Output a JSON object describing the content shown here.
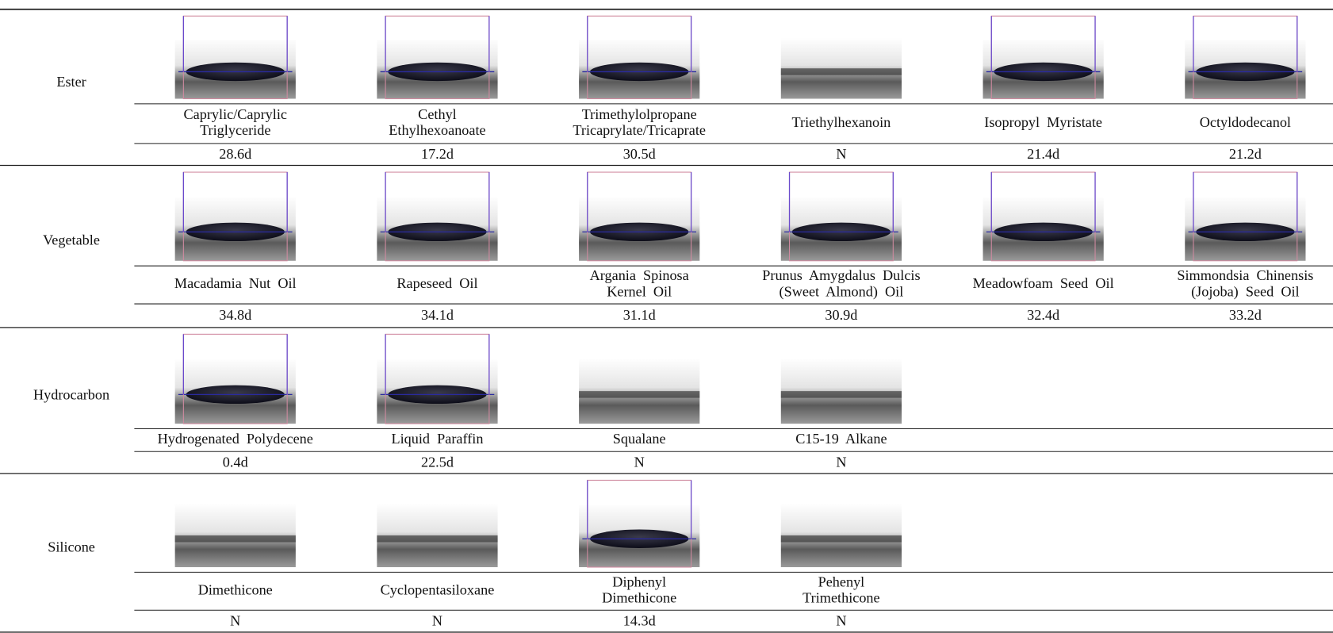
{
  "groups": [
    {
      "label": "Ester",
      "items": [
        {
          "name": [
            "Caprylic/Caprylic",
            "Triglyceride"
          ],
          "value": "28.6d"
        },
        {
          "name": [
            "Cethyl",
            "Ethylhexoanoate"
          ],
          "value": "17.2d"
        },
        {
          "name": [
            "Trimethylolpropane",
            "Tricaprylate/Tricaprate"
          ],
          "value": "30.5d"
        },
        {
          "name": [
            "Triethylhexanoin"
          ],
          "value": "N"
        },
        {
          "name": [
            "Isopropyl  Myristate"
          ],
          "value": "21.4d"
        },
        {
          "name": [
            "Octyldodecanol"
          ],
          "value": "21.2d"
        }
      ]
    },
    {
      "label": "Vegetable",
      "items": [
        {
          "name": [
            "Macadamia  Nut  Oil"
          ],
          "value": "34.8d"
        },
        {
          "name": [
            "Rapeseed  Oil"
          ],
          "value": "34.1d"
        },
        {
          "name": [
            "Argania  Spinosa",
            "Kernel  Oil"
          ],
          "value": "31.1d"
        },
        {
          "name": [
            "Prunus  Amygdalus  Dulcis",
            "(Sweet  Almond)  Oil"
          ],
          "value": "30.9d"
        },
        {
          "name": [
            "Meadowfoam  Seed  Oil"
          ],
          "value": "32.4d"
        },
        {
          "name": [
            "Simmondsia  Chinensis",
            "(Jojoba)  Seed  Oil"
          ],
          "value": "33.2d"
        }
      ]
    },
    {
      "label": "Hydrocarbon",
      "items": [
        {
          "name": [
            "Hydrogenated  Polydecene"
          ],
          "value": "0.4d"
        },
        {
          "name": [
            "Liquid  Paraffin"
          ],
          "value": "22.5d"
        },
        {
          "name": [
            "Squalane"
          ],
          "value": "N"
        },
        {
          "name": [
            "C15-19  Alkane"
          ],
          "value": "N"
        }
      ]
    },
    {
      "label": "Silicone",
      "items": [
        {
          "name": [
            "Dimethicone"
          ],
          "value": "N"
        },
        {
          "name": [
            "Cyclopentasiloxane"
          ],
          "value": "N"
        },
        {
          "name": [
            "Diphenyl",
            "Dimethicone"
          ],
          "value": "14.3d"
        },
        {
          "name": [
            "Pehenyl",
            "Trimethicone"
          ],
          "value": "N"
        }
      ]
    }
  ]
}
